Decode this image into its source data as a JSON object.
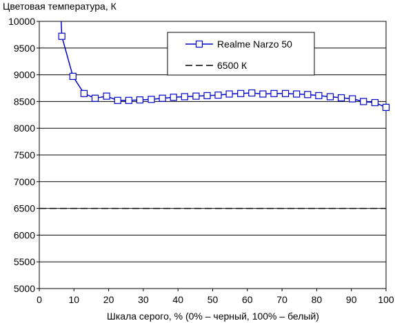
{
  "chart_data": {
    "type": "line",
    "title": "",
    "ylabel": "Цветовая температура, К",
    "xlabel": "Шкала серого, % (0% – черный, 100% – белый)",
    "xlim": [
      0,
      100
    ],
    "ylim": [
      5000,
      10000
    ],
    "xticks": [
      "0",
      "10",
      "20",
      "30",
      "40",
      "50",
      "60",
      "70",
      "80",
      "90",
      "100"
    ],
    "yticks": [
      "5000",
      "5500",
      "6000",
      "6500",
      "7000",
      "7500",
      "8000",
      "8500",
      "9000",
      "9500",
      "10000"
    ],
    "grid": "horizontal",
    "legend_position": "top-right",
    "series": [
      {
        "name": "Realme Narzo 50",
        "color": "#0000cc",
        "marker": "square",
        "line_only_start": {
          "x": 6.3,
          "y": 10000
        },
        "x": [
          6.5,
          9.7,
          12.9,
          16.1,
          19.4,
          22.6,
          25.8,
          29.0,
          32.3,
          35.5,
          38.7,
          41.9,
          45.2,
          48.4,
          51.6,
          54.8,
          58.1,
          61.3,
          64.5,
          67.7,
          71.0,
          74.2,
          77.4,
          80.6,
          83.9,
          87.1,
          90.3,
          93.5,
          96.8,
          100.0
        ],
        "y": [
          9720,
          8970,
          8650,
          8560,
          8600,
          8520,
          8520,
          8530,
          8540,
          8560,
          8580,
          8590,
          8600,
          8610,
          8620,
          8640,
          8650,
          8660,
          8640,
          8650,
          8650,
          8640,
          8630,
          8610,
          8590,
          8570,
          8550,
          8500,
          8480,
          8390
        ]
      },
      {
        "name": "6500 К",
        "color": "#000000",
        "style": "dashed",
        "x": [
          0,
          100
        ],
        "y": [
          6500,
          6500
        ]
      }
    ]
  }
}
